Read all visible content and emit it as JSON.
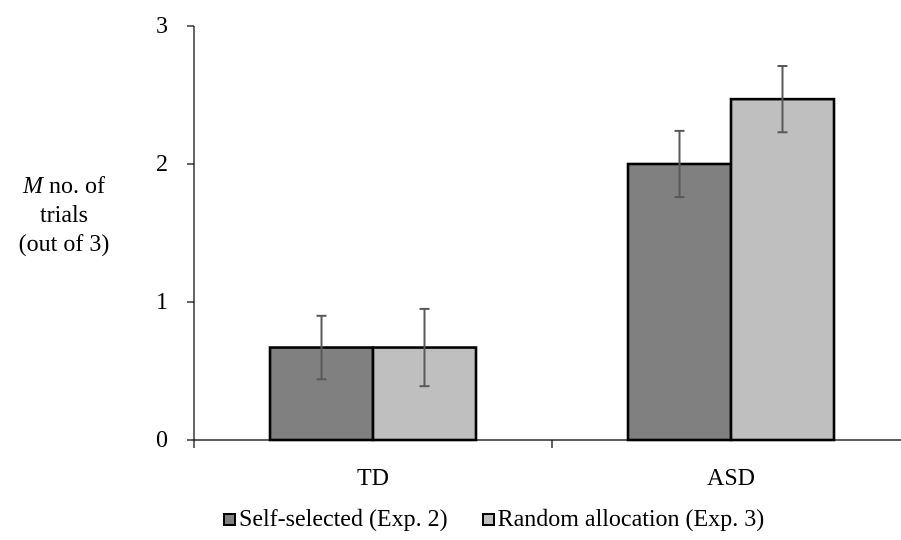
{
  "chart_data": {
    "type": "bar",
    "categories": [
      "TD",
      "ASD"
    ],
    "series": [
      {
        "name": "Self-selected (Exp. 2)",
        "color": "#808080",
        "values": [
          0.67,
          2.0
        ],
        "error": [
          0.23,
          0.24
        ]
      },
      {
        "name": "Random allocation (Exp. 3)",
        "color": "#bfbfbf",
        "values": [
          0.67,
          2.47
        ],
        "error": [
          0.28,
          0.24
        ]
      }
    ],
    "ylabel": {
      "italic": "M",
      "rest": "no. of",
      "line2": "trials",
      "line3": "(out of 3)"
    },
    "ylim": [
      0,
      3
    ],
    "yticks": [
      "0",
      "1",
      "2",
      "3"
    ],
    "grid": false,
    "legend_position": "bottom",
    "error_bar_color": "#595959"
  }
}
